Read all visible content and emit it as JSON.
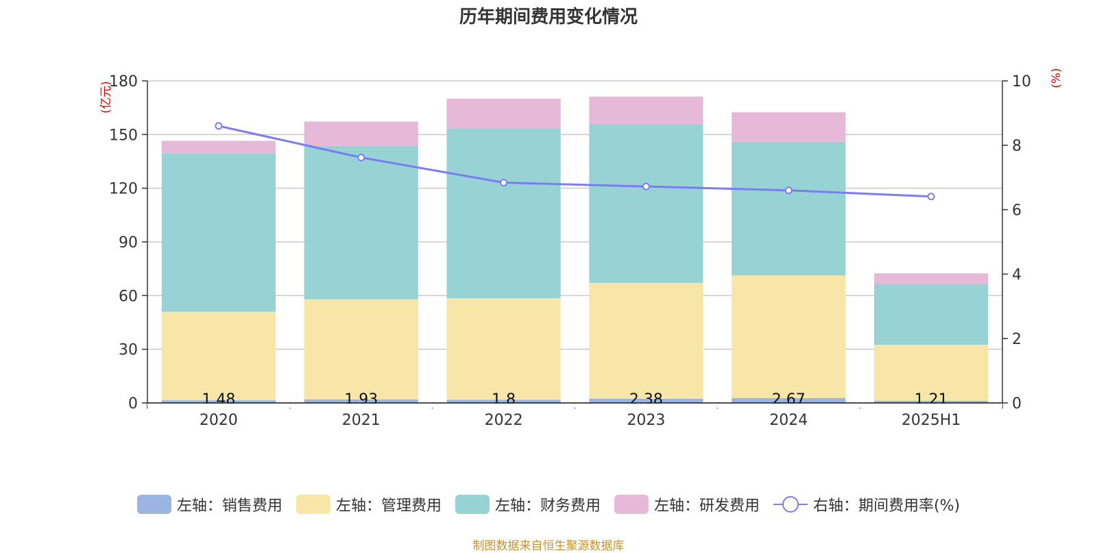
{
  "chart_data": {
    "type": "bar",
    "title": "历年期间费用变化情况",
    "categories": [
      "2020",
      "2021",
      "2022",
      "2023",
      "2024",
      "2025H1"
    ],
    "left_axis": {
      "unit_label": "(亿元)",
      "ylim": [
        0,
        180
      ],
      "ticks": [
        "0",
        "30",
        "60",
        "90",
        "120",
        "150",
        "180"
      ]
    },
    "right_axis": {
      "unit_label": "(%)",
      "ylim": [
        0,
        10
      ],
      "ticks": [
        "0",
        "2",
        "4",
        "6",
        "8",
        "10"
      ]
    },
    "stacked": true,
    "series": [
      {
        "name": "左轴：销售费用",
        "color": "#9bb4e0",
        "values": [
          1.48,
          1.93,
          1.8,
          2.38,
          2.67,
          1.21
        ],
        "labels": [
          "1.48",
          "1.93",
          "1.8",
          "2.38",
          "2.67",
          "1.21"
        ]
      },
      {
        "name": "左轴：管理费用",
        "color": "#f8e6a8",
        "values": [
          49.5,
          56.0,
          56.7,
          64.7,
          68.6,
          31.3
        ]
      },
      {
        "name": "左轴：财务费用",
        "color": "#97d3d4",
        "values": [
          88.5,
          85.8,
          95.0,
          88.6,
          74.7,
          33.9
        ]
      },
      {
        "name": "左轴：研发费用",
        "color": "#e7b9d8",
        "values": [
          7.0,
          13.5,
          16.5,
          15.5,
          16.5,
          6.0
        ]
      },
      {
        "name": "右轴：期间费用率(%)",
        "color": "#7b7cf3",
        "axis": "right",
        "type": "line",
        "values": [
          8.6,
          7.62,
          6.84,
          6.72,
          6.6,
          6.41
        ]
      }
    ],
    "grid": true,
    "legend_position": "bottom"
  },
  "footer": "制图数据来自恒生聚源数据库"
}
